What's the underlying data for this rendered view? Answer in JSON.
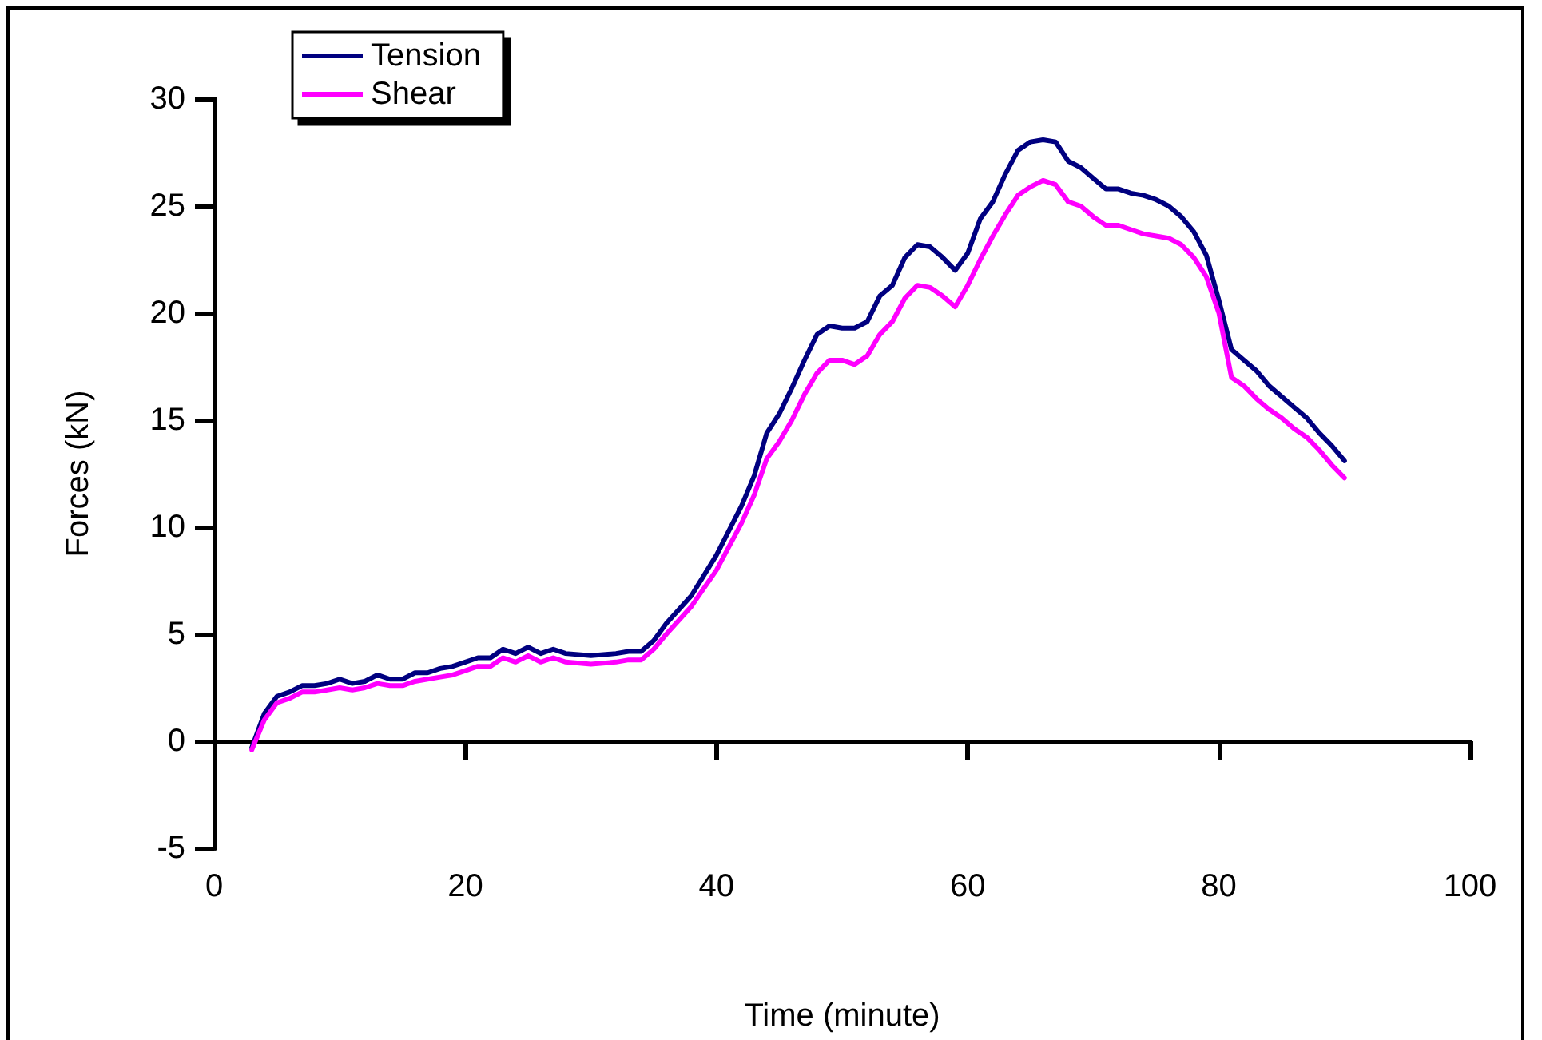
{
  "chart_data": {
    "type": "line",
    "xlabel": "Time (minute)",
    "ylabel": "Forces (kN)",
    "x": [
      3,
      4,
      5,
      6,
      7,
      8,
      9,
      10,
      11,
      12,
      13,
      14,
      15,
      16,
      17,
      18,
      19,
      20,
      21,
      22,
      23,
      24,
      25,
      26,
      27,
      28,
      30,
      32,
      33,
      34,
      35,
      36,
      38,
      40,
      42,
      43,
      44,
      45,
      46,
      47,
      48,
      49,
      50,
      51,
      52,
      53,
      54,
      55,
      56,
      57,
      58,
      59,
      60,
      61,
      62,
      63,
      64,
      65,
      66,
      67,
      68,
      69,
      70,
      71,
      72,
      73,
      74,
      75,
      76,
      77,
      78,
      79,
      80,
      81,
      82,
      83,
      84,
      85,
      86,
      87,
      88,
      89,
      90
    ],
    "series": [
      {
        "name": "Tension",
        "color": "#000080",
        "values": [
          -0.3,
          1.3,
          2.1,
          2.3,
          2.6,
          2.6,
          2.7,
          2.9,
          2.7,
          2.8,
          3.1,
          2.9,
          2.9,
          3.2,
          3.2,
          3.4,
          3.5,
          3.7,
          3.9,
          3.9,
          4.3,
          4.1,
          4.4,
          4.1,
          4.3,
          4.1,
          4.0,
          4.1,
          4.2,
          4.2,
          4.7,
          5.5,
          6.8,
          8.7,
          11.0,
          12.4,
          14.4,
          15.3,
          16.5,
          17.8,
          19.0,
          19.4,
          19.3,
          19.3,
          19.6,
          20.8,
          21.3,
          22.6,
          23.2,
          23.1,
          22.6,
          22.0,
          22.8,
          24.4,
          25.2,
          26.5,
          27.6,
          28.0,
          28.1,
          28.0,
          27.1,
          26.8,
          26.3,
          25.8,
          25.8,
          25.6,
          25.5,
          25.3,
          25.0,
          24.5,
          23.8,
          22.7,
          20.6,
          18.3,
          17.8,
          17.3,
          16.6,
          16.1,
          15.6,
          15.1,
          14.4,
          13.8,
          13.1
        ]
      },
      {
        "name": "Shear",
        "color": "#ff00ff",
        "values": [
          -0.4,
          1.0,
          1.8,
          2.0,
          2.3,
          2.3,
          2.4,
          2.5,
          2.4,
          2.5,
          2.7,
          2.6,
          2.6,
          2.8,
          2.9,
          3.0,
          3.1,
          3.3,
          3.5,
          3.5,
          3.9,
          3.7,
          4.0,
          3.7,
          3.9,
          3.7,
          3.6,
          3.7,
          3.8,
          3.8,
          4.3,
          5.0,
          6.3,
          8.0,
          10.2,
          11.5,
          13.2,
          14.0,
          15.0,
          16.2,
          17.2,
          17.8,
          17.8,
          17.6,
          18.0,
          19.0,
          19.6,
          20.7,
          21.3,
          21.2,
          20.8,
          20.3,
          21.3,
          22.5,
          23.6,
          24.6,
          25.5,
          25.9,
          26.2,
          26.0,
          25.2,
          25.0,
          24.5,
          24.1,
          24.1,
          23.9,
          23.7,
          23.6,
          23.5,
          23.2,
          22.6,
          21.7,
          20.0,
          17.0,
          16.6,
          16.0,
          15.5,
          15.1,
          14.6,
          14.2,
          13.6,
          12.9,
          12.3
        ]
      }
    ],
    "xlim": [
      0,
      100
    ],
    "xticks": [
      0,
      20,
      40,
      60,
      80,
      100
    ],
    "ylim": [
      -5,
      30
    ],
    "yticks": [
      -5,
      0,
      5,
      10,
      15,
      20,
      25,
      30
    ],
    "legend": "top left",
    "marker": "none",
    "line_style": "solid"
  }
}
